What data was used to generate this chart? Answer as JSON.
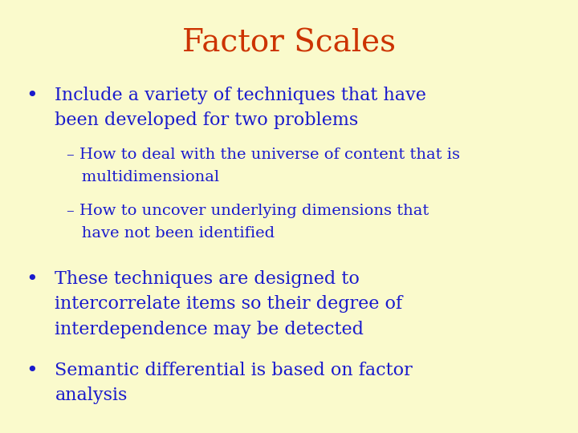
{
  "title": "Factor Scales",
  "title_color": "#CC3300",
  "title_fontsize": 28,
  "background_color": "#FAFACC",
  "body_color": "#1A1ACC",
  "bullet1_line1": "Include a variety of techniques that have",
  "bullet1_line2": "been developed for two problems",
  "sub1_line1": "– How to deal with the universe of content that is",
  "sub1_line2": "   multidimensional",
  "sub2_line1": "– How to uncover underlying dimensions that",
  "sub2_line2": "   have not been identified",
  "bullet2_line1": "These techniques are designed to",
  "bullet2_line2": "intercorrelate items so their degree of",
  "bullet2_line3": "interdependence may be detected",
  "bullet3_line1": "Semantic differential is based on factor",
  "bullet3_line2": "analysis",
  "bullet_fontsize": 16,
  "sub_fontsize": 14,
  "title_fontstyle": "normal",
  "title_fontfamily": "serif"
}
